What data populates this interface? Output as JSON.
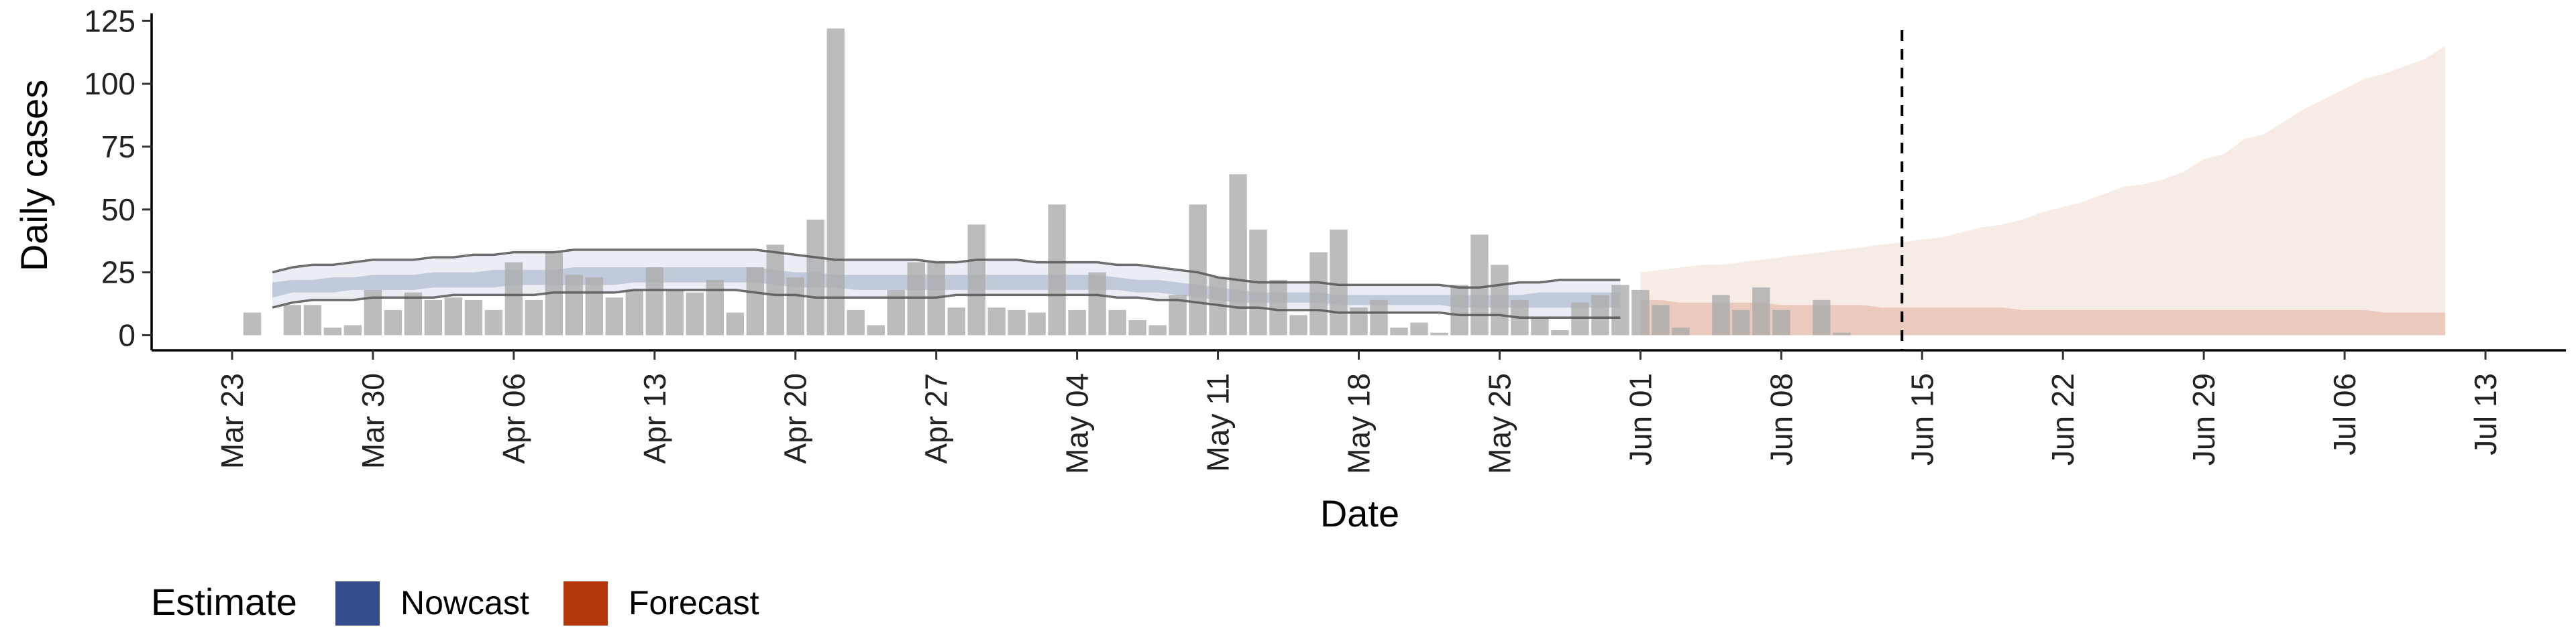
{
  "chart_data": {
    "type": "bar",
    "xlabel": "Date",
    "ylabel": "Daily cases",
    "x_range": [
      "2020-03-19",
      "2020-07-17"
    ],
    "ylim": [
      -6,
      128
    ],
    "y_ticks": [
      0,
      25,
      50,
      75,
      100,
      125
    ],
    "x_ticks": [
      {
        "date": "2020-03-23",
        "label": "Mar 23"
      },
      {
        "date": "2020-03-30",
        "label": "Mar 30"
      },
      {
        "date": "2020-04-06",
        "label": "Apr 06"
      },
      {
        "date": "2020-04-13",
        "label": "Apr 13"
      },
      {
        "date": "2020-04-20",
        "label": "Apr 20"
      },
      {
        "date": "2020-04-27",
        "label": "Apr 27"
      },
      {
        "date": "2020-05-04",
        "label": "May 04"
      },
      {
        "date": "2020-05-11",
        "label": "May 11"
      },
      {
        "date": "2020-05-18",
        "label": "May 18"
      },
      {
        "date": "2020-05-25",
        "label": "May 25"
      },
      {
        "date": "2020-06-01",
        "label": "Jun 01"
      },
      {
        "date": "2020-06-08",
        "label": "Jun 08"
      },
      {
        "date": "2020-06-15",
        "label": "Jun 15"
      },
      {
        "date": "2020-06-22",
        "label": "Jun 22"
      },
      {
        "date": "2020-06-29",
        "label": "Jun 29"
      },
      {
        "date": "2020-07-06",
        "label": "Jul 06"
      },
      {
        "date": "2020-07-13",
        "label": "Jul 13"
      }
    ],
    "reported_cases": {
      "start": "2020-03-24",
      "values": [
        9,
        0,
        12,
        12,
        3,
        4,
        18,
        10,
        17,
        14,
        15,
        14,
        10,
        29,
        14,
        33,
        24,
        23,
        15,
        18,
        27,
        18,
        17,
        22,
        9,
        27,
        36,
        23,
        46,
        122,
        10,
        4,
        18,
        29,
        29,
        11,
        44,
        11,
        10,
        9,
        52,
        10,
        25,
        10,
        6,
        4,
        16,
        52,
        23,
        64,
        42,
        22,
        8,
        33,
        42,
        11,
        14,
        3,
        5,
        1,
        20,
        40,
        28,
        14,
        7,
        2,
        13,
        16,
        20,
        18,
        12,
        3,
        0,
        16,
        10,
        19,
        10,
        0,
        14,
        1
      ]
    },
    "nowcast": {
      "start": "2020-03-25",
      "end": "2020-05-31",
      "upper": [
        25,
        27,
        28,
        28,
        29,
        30,
        30,
        30,
        31,
        31,
        32,
        32,
        33,
        33,
        33,
        34,
        34,
        34,
        34,
        34,
        34,
        34,
        34,
        34,
        34,
        33,
        32,
        31,
        30,
        30,
        30,
        30,
        30,
        29,
        29,
        30,
        30,
        30,
        29,
        29,
        29,
        29,
        28,
        28,
        27,
        26,
        25,
        23,
        22,
        21,
        21,
        21,
        21,
        20,
        20,
        20,
        20,
        20,
        20,
        19,
        19,
        20,
        21,
        21,
        22,
        22,
        22,
        22
      ],
      "lower": [
        11,
        13,
        14,
        14,
        14,
        15,
        15,
        15,
        15,
        16,
        16,
        16,
        16,
        16,
        17,
        17,
        17,
        17,
        18,
        18,
        18,
        18,
        18,
        18,
        17,
        16,
        16,
        15,
        15,
        15,
        15,
        15,
        15,
        15,
        16,
        16,
        16,
        16,
        16,
        16,
        16,
        16,
        15,
        15,
        14,
        14,
        13,
        12,
        11,
        11,
        10,
        10,
        10,
        9,
        9,
        9,
        9,
        9,
        9,
        8,
        8,
        8,
        7,
        7,
        7,
        7,
        7,
        7
      ],
      "mid_upper": [
        21,
        22,
        22,
        23,
        23,
        24,
        24,
        24,
        25,
        25,
        25,
        26,
        26,
        26,
        26,
        27,
        27,
        27,
        27,
        27,
        27,
        27,
        27,
        27,
        27,
        26,
        25,
        25,
        24,
        24,
        24,
        24,
        24,
        24,
        24,
        24,
        24,
        24,
        24,
        24,
        24,
        24,
        23,
        22,
        22,
        21,
        20,
        19,
        18,
        17,
        17,
        17,
        17,
        16,
        16,
        16,
        16,
        16,
        16,
        16,
        16,
        16,
        16,
        17,
        17,
        17,
        17,
        17
      ],
      "mid_lower": [
        15,
        17,
        17,
        17,
        18,
        18,
        18,
        18,
        19,
        19,
        19,
        19,
        20,
        20,
        20,
        20,
        20,
        20,
        21,
        21,
        21,
        21,
        21,
        21,
        21,
        20,
        19,
        19,
        19,
        18,
        18,
        18,
        18,
        18,
        18,
        18,
        18,
        18,
        18,
        18,
        18,
        18,
        18,
        17,
        17,
        16,
        15,
        14,
        13,
        13,
        13,
        13,
        13,
        12,
        12,
        12,
        12,
        12,
        12,
        11,
        11,
        11,
        11,
        11,
        11,
        11,
        11,
        11
      ]
    },
    "forecast": {
      "start": "2020-06-01",
      "end": "2020-07-11",
      "upper": [
        25,
        26,
        27,
        28,
        28,
        29,
        30,
        31,
        32,
        33,
        34,
        35,
        36,
        37,
        38,
        39,
        41,
        43,
        44,
        46,
        49,
        51,
        53,
        56,
        59,
        60,
        62,
        65,
        70,
        72,
        78,
        80,
        85,
        90,
        94,
        98,
        102,
        104,
        107,
        110,
        115
      ],
      "lower": [
        0,
        0,
        0,
        0,
        0,
        0,
        0,
        0,
        0,
        0,
        0,
        0,
        0,
        0,
        0,
        0,
        0,
        0,
        0,
        0,
        0,
        0,
        0,
        0,
        0,
        0,
        0,
        0,
        0,
        0,
        0,
        0,
        0,
        0,
        0,
        0,
        0,
        0,
        0,
        0,
        0
      ],
      "mid_upper": [
        14,
        14,
        13,
        13,
        13,
        13,
        13,
        12,
        12,
        12,
        12,
        12,
        11,
        11,
        11,
        11,
        11,
        11,
        11,
        10,
        10,
        10,
        10,
        10,
        10,
        10,
        10,
        10,
        10,
        10,
        10,
        10,
        10,
        10,
        10,
        10,
        10,
        9,
        9,
        9,
        9
      ]
    },
    "vline_date": "2020-06-14",
    "legend": {
      "title": "Estimate",
      "position": "bottom-left",
      "items": [
        {
          "label": "Nowcast",
          "color": "#344C8A"
        },
        {
          "label": "Forecast",
          "color": "#B5380D"
        }
      ]
    },
    "colors": {
      "bars": "#ABABAB",
      "nowcast": "#344C8A",
      "forecast": "#B5380D",
      "interval_lines": "#555555"
    },
    "grid": false
  }
}
